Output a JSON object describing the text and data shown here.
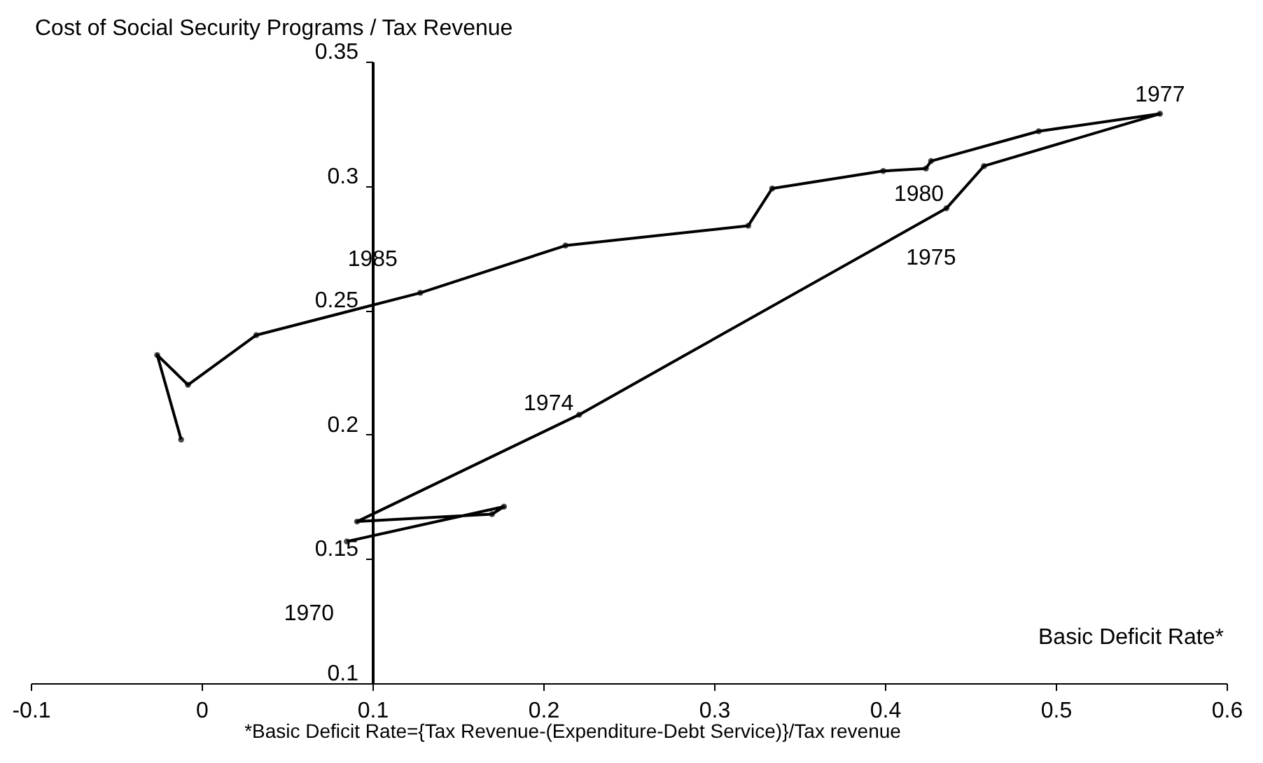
{
  "chart_data": {
    "type": "line",
    "ylabel": "Cost of Social Security Programs / Tax Revenue",
    "xlabel": "Basic Deficit Rate*",
    "x": [
      0.085,
      0.177,
      0.17,
      0.091,
      0.221,
      0.436,
      0.458,
      0.561,
      0.49,
      0.427,
      0.424,
      0.399,
      0.334,
      0.32,
      0.213,
      0.128,
      0.032,
      -0.008,
      -0.026,
      -0.012
    ],
    "values": [
      0.157,
      0.171,
      0.168,
      0.165,
      0.208,
      0.291,
      0.308,
      0.329,
      0.322,
      0.31,
      0.307,
      0.306,
      0.299,
      0.284,
      0.276,
      0.257,
      0.24,
      0.22,
      0.232,
      0.198
    ],
    "color": "#000000",
    "marker": "circle",
    "line_style": "solid",
    "grid": false,
    "legend": false,
    "xlim": [
      -0.1,
      0.6
    ],
    "ylim": [
      0.1,
      0.35
    ],
    "xticks": [
      -0.1,
      0,
      0.1,
      0.2,
      0.3,
      0.4,
      0.5,
      0.6
    ],
    "yticks": [
      0.1,
      0.15,
      0.2,
      0.25,
      0.3,
      0.35
    ],
    "annotations": [
      {
        "text": "1970",
        "x": 0.085,
        "y": 0.157
      },
      {
        "text": "1974",
        "x": 0.221,
        "y": 0.208
      },
      {
        "text": "1975",
        "x": 0.436,
        "y": 0.291
      },
      {
        "text": "1977",
        "x": 0.561,
        "y": 0.329
      },
      {
        "text": "1980",
        "x": 0.424,
        "y": 0.307
      },
      {
        "text": "1985",
        "x": 0.128,
        "y": 0.257
      },
      "*Basic Deficit Rate={Tax Revenue-(Expenditure-Debt Service)}/Tax revenue"
    ]
  }
}
